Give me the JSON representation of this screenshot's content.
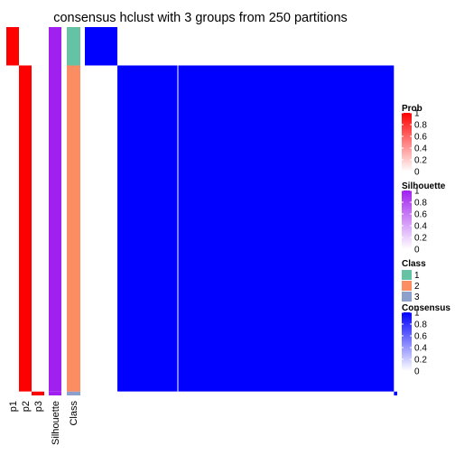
{
  "chart_data": {
    "type": "heatmap",
    "title": "consensus hclust with 3 groups from 250 partitions",
    "columns": [
      {
        "name": "p1"
      },
      {
        "name": "p2"
      },
      {
        "name": "p3"
      },
      {
        "name": "Silhouette"
      },
      {
        "name": "Class"
      }
    ],
    "groups": [
      {
        "class": 1,
        "size": 10,
        "p1": 1,
        "p2": 0,
        "p3": 0,
        "silhouette": 1,
        "consensus_within": 1
      },
      {
        "class": 2,
        "size": 85,
        "p1": 0,
        "p2": 1,
        "p3": 0,
        "silhouette": 1,
        "consensus_within": 1
      },
      {
        "class": 3,
        "size": 1,
        "p1": 0,
        "p2": 0,
        "p3": 1,
        "silhouette": 1,
        "consensus_within": 1
      }
    ],
    "consensus_between_groups": 0,
    "legends": [
      {
        "title": "Prob",
        "ticks": [
          "0",
          "0.2",
          "0.4",
          "0.6",
          "0.8",
          "1"
        ],
        "colors": [
          "#ffffff",
          "#ff0000"
        ]
      },
      {
        "title": "Silhouette",
        "ticks": [
          "0",
          "0.2",
          "0.4",
          "0.6",
          "0.8",
          "1"
        ],
        "colors": [
          "#ffffff",
          "#a020f0"
        ]
      },
      {
        "title": "Class",
        "items": [
          {
            "label": "1",
            "color": "#66c2a5"
          },
          {
            "label": "2",
            "color": "#fc8d62"
          },
          {
            "label": "3",
            "color": "#8da0cb"
          }
        ]
      },
      {
        "title": "Consensus",
        "ticks": [
          "0",
          "0.2",
          "0.4",
          "0.6",
          "0.8",
          "1"
        ],
        "colors": [
          "#ffffff",
          "#0000ff"
        ]
      }
    ],
    "colors": {
      "prob_high": "#ff0000",
      "silhouette_high": "#a020f0",
      "consensus_high": "#0000ff",
      "background": "#ffffff"
    }
  }
}
